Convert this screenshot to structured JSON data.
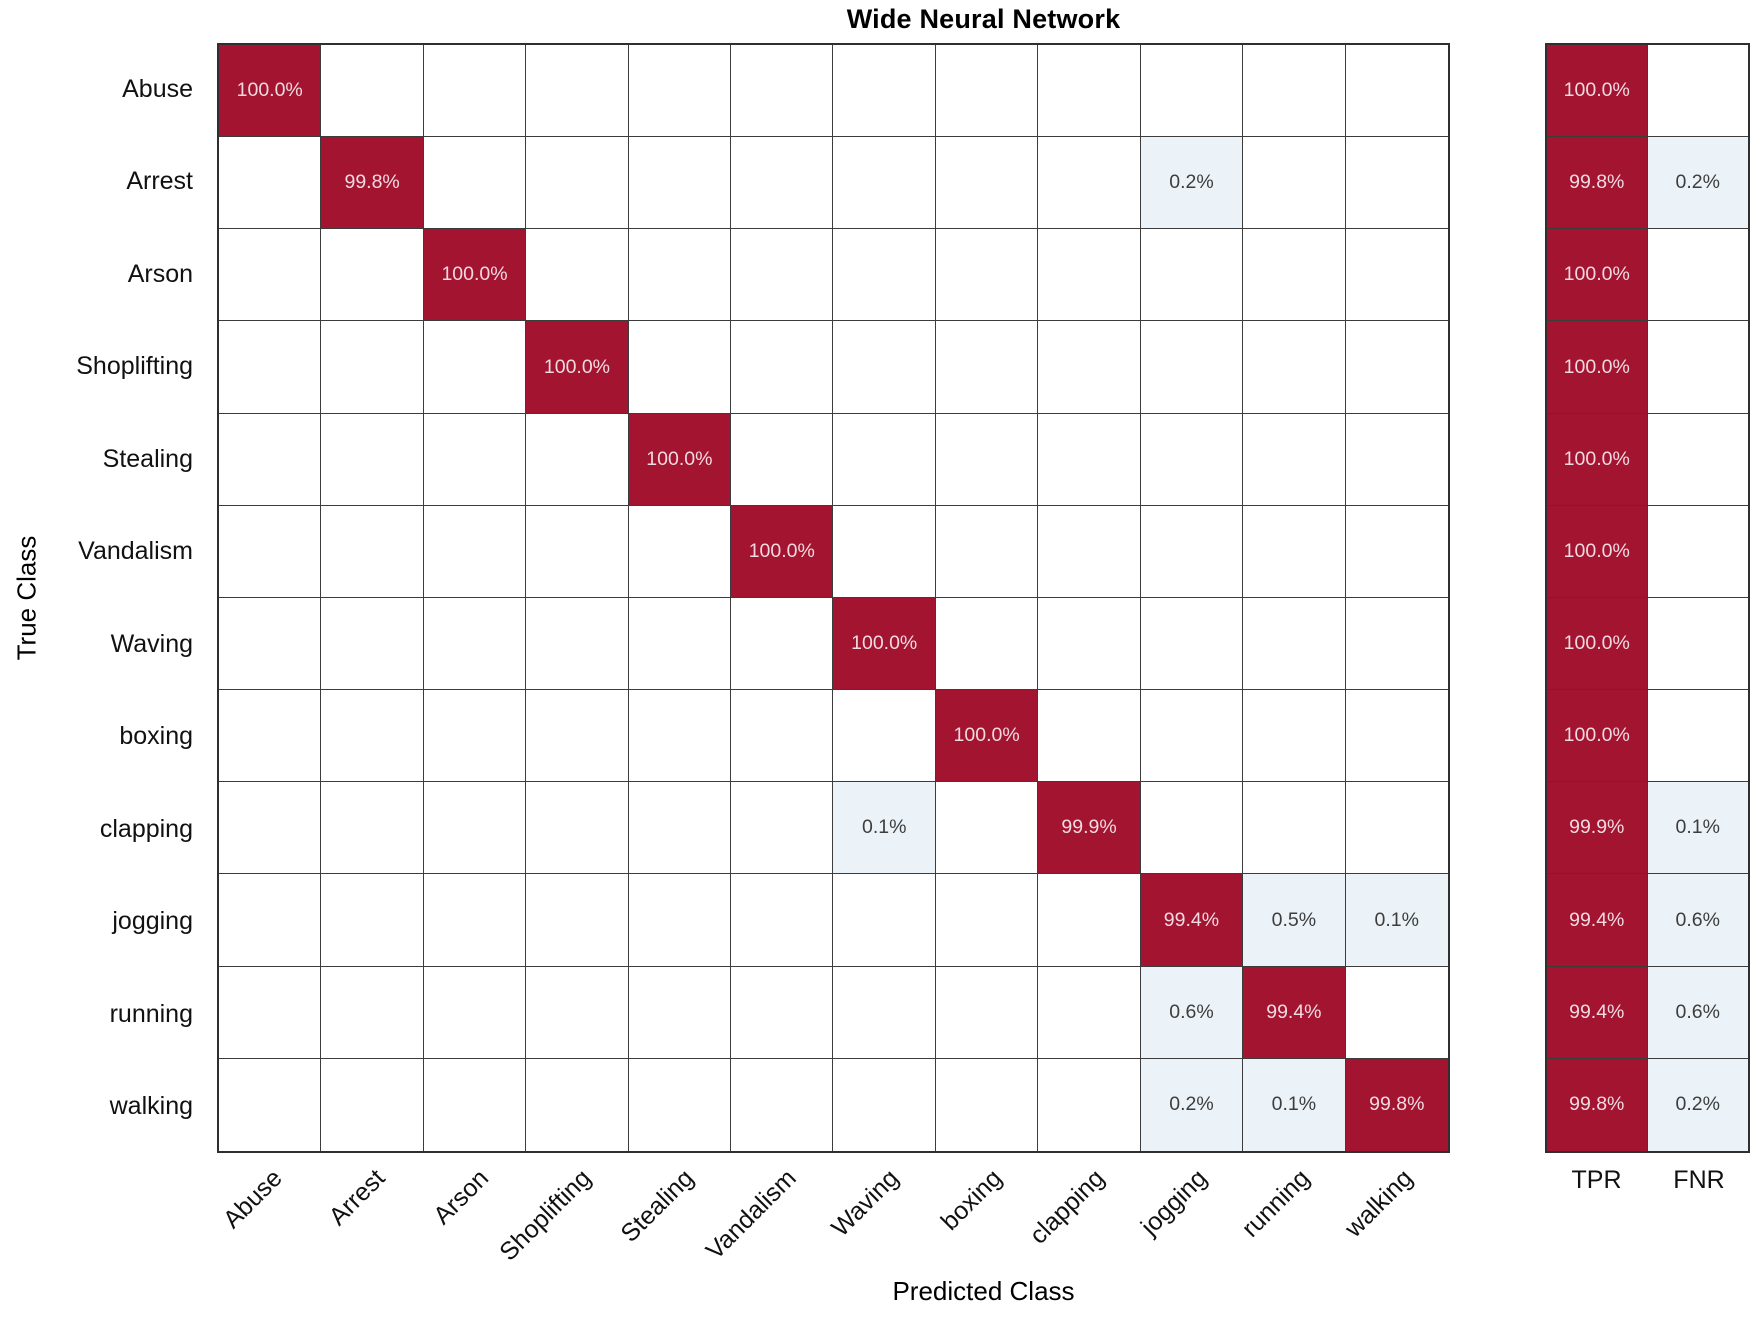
{
  "title": "Wide Neural Network",
  "axes": {
    "x_label": "Predicted Class",
    "y_label": "True Class"
  },
  "chart_data": {
    "type": "heatmap",
    "subtype": "confusion-matrix",
    "title": "Wide Neural Network",
    "xlabel": "Predicted Class",
    "ylabel": "True Class",
    "value_unit": "percent",
    "classes": [
      "Abuse",
      "Arrest",
      "Arson",
      "Shoplifting",
      "Stealing",
      "Vandalism",
      "Waving",
      "boxing",
      "clapping",
      "jogging",
      "running",
      "walking"
    ],
    "matrix_percent": [
      [
        100.0,
        null,
        null,
        null,
        null,
        null,
        null,
        null,
        null,
        null,
        null,
        null
      ],
      [
        null,
        99.8,
        null,
        null,
        null,
        null,
        null,
        null,
        null,
        0.2,
        null,
        null
      ],
      [
        null,
        null,
        100.0,
        null,
        null,
        null,
        null,
        null,
        null,
        null,
        null,
        null
      ],
      [
        null,
        null,
        null,
        100.0,
        null,
        null,
        null,
        null,
        null,
        null,
        null,
        null
      ],
      [
        null,
        null,
        null,
        null,
        100.0,
        null,
        null,
        null,
        null,
        null,
        null,
        null
      ],
      [
        null,
        null,
        null,
        null,
        null,
        100.0,
        null,
        null,
        null,
        null,
        null,
        null
      ],
      [
        null,
        null,
        null,
        null,
        null,
        null,
        100.0,
        null,
        null,
        null,
        null,
        null
      ],
      [
        null,
        null,
        null,
        null,
        null,
        null,
        null,
        100.0,
        null,
        null,
        null,
        null
      ],
      [
        null,
        null,
        null,
        null,
        null,
        null,
        0.1,
        null,
        99.9,
        null,
        null,
        null
      ],
      [
        null,
        null,
        null,
        null,
        null,
        null,
        null,
        null,
        null,
        99.4,
        0.5,
        0.1
      ],
      [
        null,
        null,
        null,
        null,
        null,
        null,
        null,
        null,
        null,
        0.6,
        99.4,
        null
      ],
      [
        null,
        null,
        null,
        null,
        null,
        null,
        null,
        null,
        null,
        0.2,
        0.1,
        99.8
      ]
    ],
    "summary_columns": [
      "TPR",
      "FNR"
    ],
    "tpr_percent": [
      100.0,
      99.8,
      100.0,
      100.0,
      100.0,
      100.0,
      100.0,
      100.0,
      99.9,
      99.4,
      99.4,
      99.8
    ],
    "fnr_percent": [
      null,
      0.2,
      null,
      null,
      null,
      null,
      null,
      null,
      0.1,
      0.6,
      0.6,
      0.2
    ],
    "legend_position": "none",
    "grid": true,
    "colors": {
      "diagonal": "#A2142F",
      "off_diagonal_tint": "#ECF3F8",
      "empty_cell": "#FFFFFF",
      "grid_line": "#3C3C3C",
      "text_on_dark": "#F1DAE1",
      "text_on_light": "#3D3D3D"
    }
  }
}
